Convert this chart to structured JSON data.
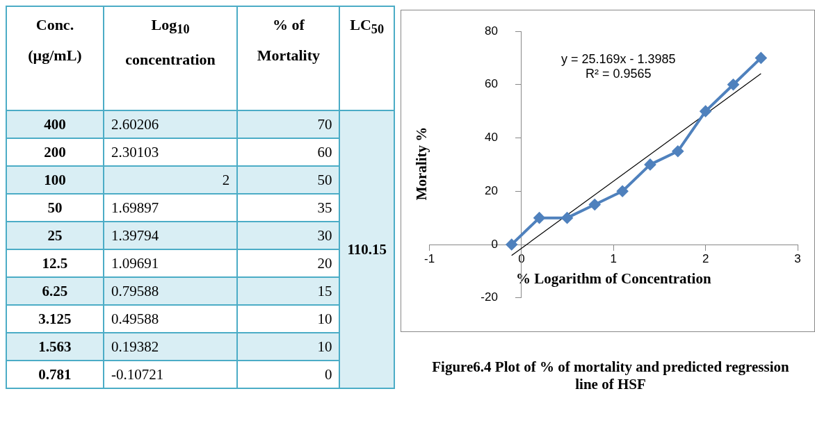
{
  "chart_data": {
    "type": "line",
    "xlabel": "% Logarithm of Concentration",
    "ylabel": "Morality %",
    "x": [
      2.60206,
      2.30103,
      2,
      1.69897,
      1.39794,
      1.09691,
      0.79588,
      0.49588,
      0.19382,
      -0.10721
    ],
    "series": [
      {
        "type": "line",
        "color": "#4f81bd",
        "values": [
          70,
          60,
          50,
          35,
          30,
          20,
          15,
          10,
          10,
          0
        ],
        "marker": "diamond",
        "line_style": "solid"
      },
      {
        "type": "line",
        "color": "#000000",
        "x": [
          -0.10721,
          2.60206
        ],
        "values": [
          -4.1,
          64.1
        ],
        "marker": "none",
        "line_style": "solid"
      }
    ],
    "xlim": [
      -1,
      3
    ],
    "xticks": [
      -1,
      0,
      1,
      2,
      3
    ],
    "ylim": [
      -20,
      80
    ],
    "yticks": [
      -20,
      0,
      20,
      40,
      60,
      80
    ],
    "annotations": [
      "y = 25.169x - 1.3985",
      "R² = 0.9565",
      "Figure6.4 Plot of % of mortality and predicted regression line of HSF",
      "Conc. (µg/mL)",
      "Log$_{10}$ concentration",
      "% of Mortality",
      "LC$_{50}$",
      "400",
      "2.60206",
      "70",
      "200",
      "2.30103",
      "60",
      "100",
      "2",
      "50",
      "50",
      "1.69897",
      "35",
      "25",
      "1.39794",
      "30",
      "12.5",
      "1.09691",
      "20",
      "6.25",
      "0.79588",
      "15",
      "3.125",
      "0.49588",
      "10",
      "1.563",
      "0.19382",
      "10",
      "0.781",
      "-0.10721",
      "0",
      "110.15"
    ]
  }
}
